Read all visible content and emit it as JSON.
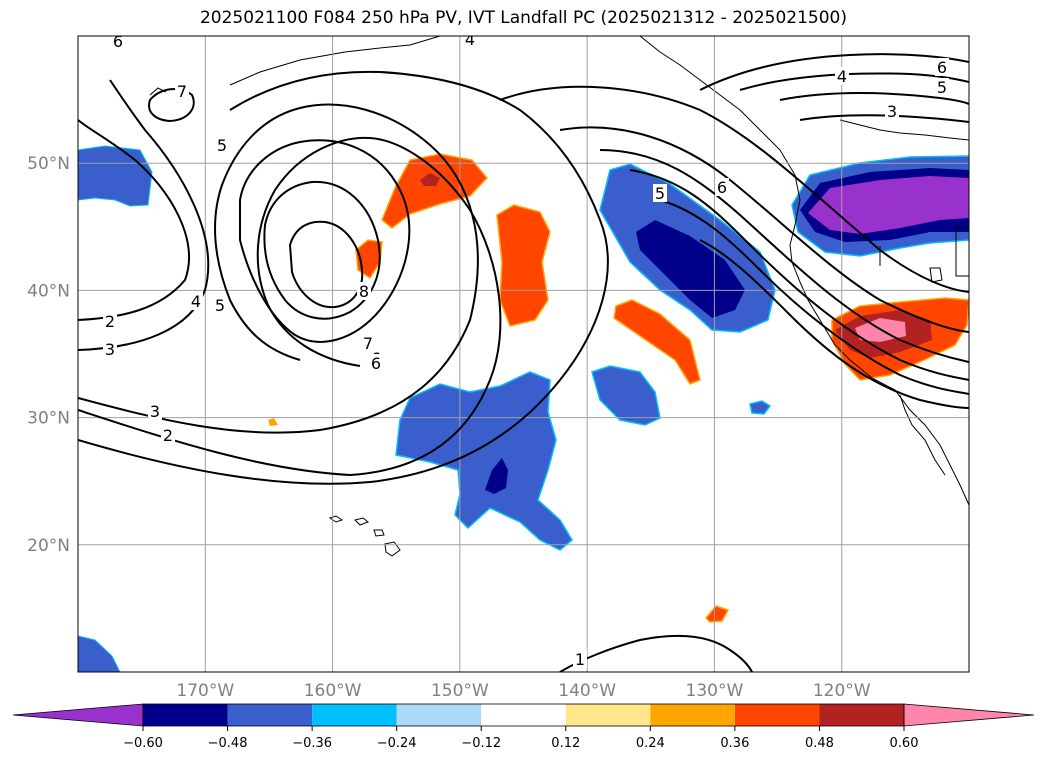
{
  "title": "2025021100 F084 250 hPa PV, IVT Landfall PC (2025021312 - 2025021500)",
  "map": {
    "lon_range": [
      -180,
      -110
    ],
    "lat_range": [
      10,
      60
    ],
    "lat_ticks": [
      {
        "value": 20,
        "label": "20°N"
      },
      {
        "value": 30,
        "label": "30°N"
      },
      {
        "value": 40,
        "label": "40°N"
      },
      {
        "value": 50,
        "label": "50°N"
      }
    ],
    "lon_ticks": [
      {
        "value": -170,
        "label": "170°W"
      },
      {
        "value": -160,
        "label": "160°W"
      },
      {
        "value": -150,
        "label": "150°W"
      },
      {
        "value": -140,
        "label": "140°W"
      },
      {
        "value": -130,
        "label": "130°W"
      },
      {
        "value": -120,
        "label": "120°W"
      }
    ],
    "gridlines": true,
    "grid_color": "#a0a0a0",
    "contour_color": "#000000"
  },
  "contour_labels": [
    "6",
    "4",
    "7",
    "5",
    "6",
    "4",
    "6",
    "5",
    "3",
    "5",
    "6",
    "2",
    "4",
    "5",
    "8",
    "7",
    "6",
    "3",
    "2",
    "1",
    "3"
  ],
  "colorbar": {
    "levels": [
      "−0.60",
      "−0.48",
      "−0.36",
      "−0.24",
      "−0.12",
      "0.12",
      "0.24",
      "0.36",
      "0.48",
      "0.60"
    ],
    "colors": [
      "#9932cc",
      "#00008b",
      "#3a5fcd",
      "#00bfff",
      "#add8f6",
      "#ffffff",
      "#ffe78c",
      "#ffa500",
      "#ff4500",
      "#b22222",
      "#ff85aa"
    ],
    "extend": "both"
  }
}
